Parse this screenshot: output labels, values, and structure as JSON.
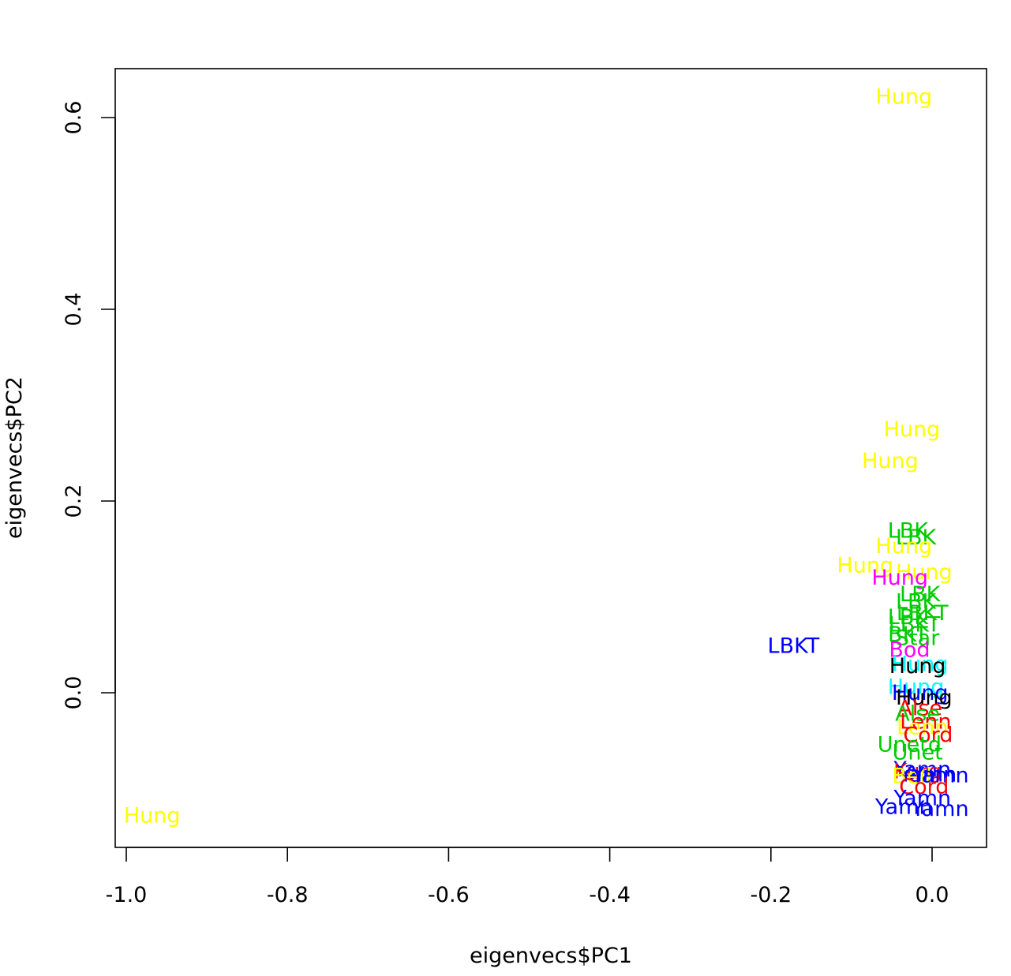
{
  "chart_data": {
    "type": "scatter",
    "marker": "text-labels",
    "xlabel": "eigenvecs$PC1",
    "ylabel": "eigenvecs$PC2",
    "xlim": [
      -1.0,
      0.0
    ],
    "ylim": [
      -0.15,
      0.65
    ],
    "x_ticks": [
      -1.0,
      -0.8,
      -0.6,
      -0.4,
      -0.2,
      0.0
    ],
    "x_tick_labels": [
      "-1.0",
      "-0.8",
      "-0.6",
      "-0.4",
      "-0.2",
      "0.0"
    ],
    "y_ticks": [
      0.0,
      0.2,
      0.4,
      0.6
    ],
    "y_tick_labels": [
      "0.0",
      "0.2",
      "0.4",
      "0.6"
    ],
    "grid": false,
    "legend": "none",
    "colors": {
      "yellow": "#ffff00",
      "green": "#00cc00",
      "blue": "#0000ff",
      "magenta": "#ff00ff",
      "cyan": "#00ffff",
      "red": "#ff0000",
      "black": "#000000",
      "axis": "#000000"
    },
    "points": [
      {
        "label": "Hung",
        "x": -0.035,
        "y": 0.622,
        "color": "#ffff00"
      },
      {
        "label": "Hung",
        "x": -0.025,
        "y": 0.275,
        "color": "#ffff00"
      },
      {
        "label": "Hung",
        "x": -0.052,
        "y": 0.242,
        "color": "#ffff00"
      },
      {
        "label": "Hung",
        "x": -0.968,
        "y": -0.128,
        "color": "#ffff00"
      },
      {
        "label": "LBK",
        "x": -0.03,
        "y": 0.169,
        "color": "#00cc00"
      },
      {
        "label": "LBK",
        "x": -0.02,
        "y": 0.162,
        "color": "#00cc00"
      },
      {
        "label": "Hung",
        "x": -0.035,
        "y": 0.153,
        "color": "#ffff00"
      },
      {
        "label": "Hung",
        "x": -0.083,
        "y": 0.133,
        "color": "#ffff00"
      },
      {
        "label": "Hung",
        "x": -0.01,
        "y": 0.126,
        "color": "#ffff00"
      },
      {
        "label": "Hung",
        "x": -0.04,
        "y": 0.12,
        "color": "#ff00ff"
      },
      {
        "label": "LBK",
        "x": -0.015,
        "y": 0.103,
        "color": "#00cc00"
      },
      {
        "label": "LBK",
        "x": -0.02,
        "y": 0.095,
        "color": "#00cc00"
      },
      {
        "label": "LBKT",
        "x": -0.012,
        "y": 0.083,
        "color": "#00cc00"
      },
      {
        "label": "LBK",
        "x": -0.03,
        "y": 0.079,
        "color": "#00cc00"
      },
      {
        "label": "LBKT",
        "x": -0.022,
        "y": 0.071,
        "color": "#00cc00"
      },
      {
        "label": "LBKT",
        "x": -0.172,
        "y": 0.049,
        "color": "#0000ff"
      },
      {
        "label": "BKT",
        "x": -0.03,
        "y": 0.061,
        "color": "#00cc00"
      },
      {
        "label": "Star",
        "x": -0.018,
        "y": 0.057,
        "color": "#00cc00"
      },
      {
        "label": "Bod",
        "x": -0.028,
        "y": 0.045,
        "color": "#ff00ff"
      },
      {
        "label": "Hung",
        "x": -0.015,
        "y": 0.03,
        "color": "#00ffff"
      },
      {
        "label": "Hung",
        "x": -0.018,
        "y": 0.028,
        "color": "#000000"
      },
      {
        "label": "Hung",
        "x": -0.02,
        "y": 0.006,
        "color": "#00ffff"
      },
      {
        "label": "Hung",
        "x": -0.015,
        "y": 0.0,
        "color": "#0000ff"
      },
      {
        "label": "Hung",
        "x": -0.01,
        "y": -0.005,
        "color": "#000000"
      },
      {
        "label": "Alse",
        "x": -0.015,
        "y": -0.016,
        "color": "#ff0000"
      },
      {
        "label": "Alse",
        "x": -0.018,
        "y": -0.022,
        "color": "#00cc00"
      },
      {
        "label": "Lenn",
        "x": -0.008,
        "y": -0.03,
        "color": "#ff0000"
      },
      {
        "label": "Lenn",
        "x": -0.012,
        "y": -0.036,
        "color": "#ffff00"
      },
      {
        "label": "Cord",
        "x": -0.005,
        "y": -0.044,
        "color": "#ff0000"
      },
      {
        "label": "Unetd",
        "x": -0.028,
        "y": -0.054,
        "color": "#00cc00"
      },
      {
        "label": "Unet",
        "x": -0.018,
        "y": -0.062,
        "color": "#00cc00"
      },
      {
        "label": "Yamn",
        "x": -0.012,
        "y": -0.08,
        "color": "#0000ff"
      },
      {
        "label": "Kurg",
        "x": -0.018,
        "y": -0.082,
        "color": "#ff0000"
      },
      {
        "label": "Yamn",
        "x": -0.005,
        "y": -0.085,
        "color": "#0000ff"
      },
      {
        "label": "Bell",
        "x": -0.025,
        "y": -0.087,
        "color": "#ffff00"
      },
      {
        "label": "Yamn",
        "x": 0.01,
        "y": -0.086,
        "color": "#0000ff"
      },
      {
        "label": "Cord",
        "x": -0.01,
        "y": -0.098,
        "color": "#ff0000"
      },
      {
        "label": "Yamn",
        "x": -0.012,
        "y": -0.11,
        "color": "#0000ff"
      },
      {
        "label": "Yamn",
        "x": -0.035,
        "y": -0.119,
        "color": "#0000ff"
      },
      {
        "label": "Yamn",
        "x": 0.01,
        "y": -0.121,
        "color": "#0000ff"
      }
    ]
  }
}
